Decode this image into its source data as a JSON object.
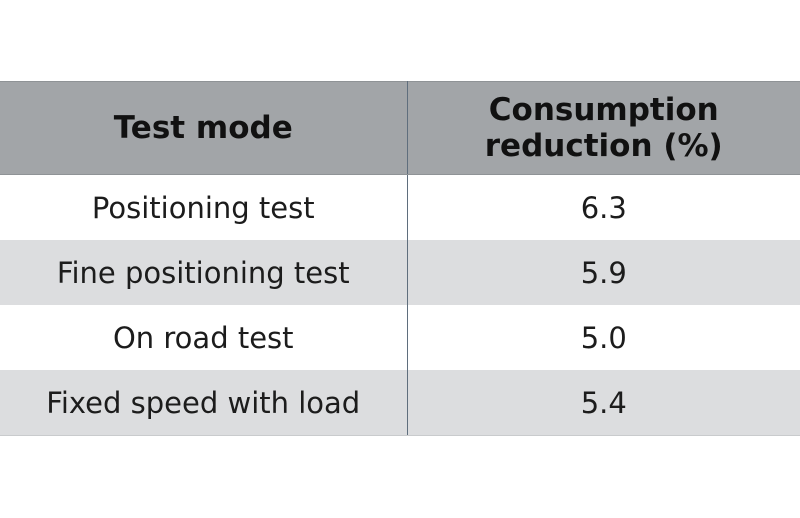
{
  "table": {
    "headers": {
      "test_mode": "Test mode",
      "consumption_line1": "Consumption",
      "consumption_line2": "reduction (%)"
    },
    "rows": [
      {
        "mode": "Positioning test",
        "value": "6.3"
      },
      {
        "mode": "Fine positioning test",
        "value": "5.9"
      },
      {
        "mode": "On road test",
        "value": "5.0"
      },
      {
        "mode": "Fixed speed with load",
        "value": "5.4"
      }
    ],
    "colors": {
      "header_bg": "#a2a5a8",
      "row_alt_bg": "#dcdddf",
      "row_bg": "#ffffff",
      "divider": "#5f6e7d"
    }
  }
}
